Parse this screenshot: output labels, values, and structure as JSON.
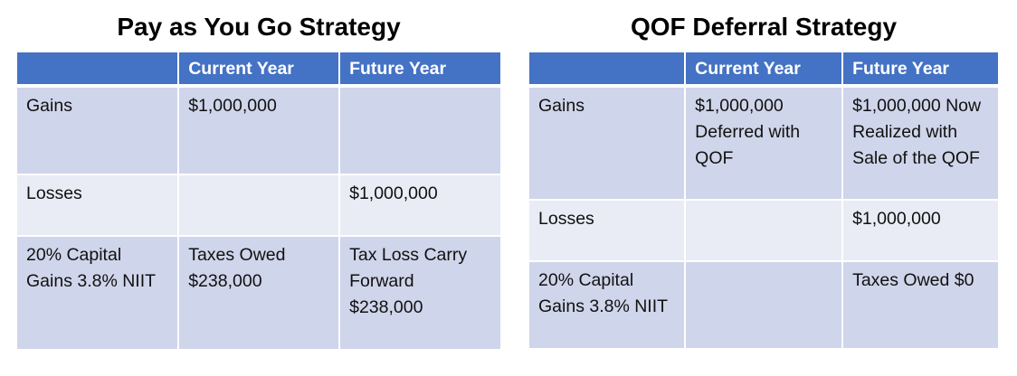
{
  "left": {
    "title": "Pay as You Go Strategy",
    "headers": [
      "",
      "Current Year",
      "Future Year"
    ],
    "rows": [
      [
        "Gains",
        "$1,000,000",
        ""
      ],
      [
        "Losses",
        "",
        "$1,000,000"
      ],
      [
        "20% Capital Gains 3.8% NIIT",
        "Taxes Owed $238,000",
        "Tax Loss Carry Forward $238,000"
      ]
    ]
  },
  "right": {
    "title": "QOF Deferral Strategy",
    "headers": [
      "",
      "Current Year",
      "Future Year"
    ],
    "rows": [
      [
        "Gains",
        "$1,000,000 Deferred with QOF",
        "$1,000,000 Now Realized with Sale of the QOF"
      ],
      [
        "Losses",
        "",
        "$1,000,000"
      ],
      [
        "20% Capital Gains 3.8% NIIT",
        "",
        "Taxes Owed $0"
      ]
    ]
  },
  "colors": {
    "header": "#4472C4",
    "row_dark": "#CFD5EA",
    "row_light": "#E9EBF5"
  }
}
